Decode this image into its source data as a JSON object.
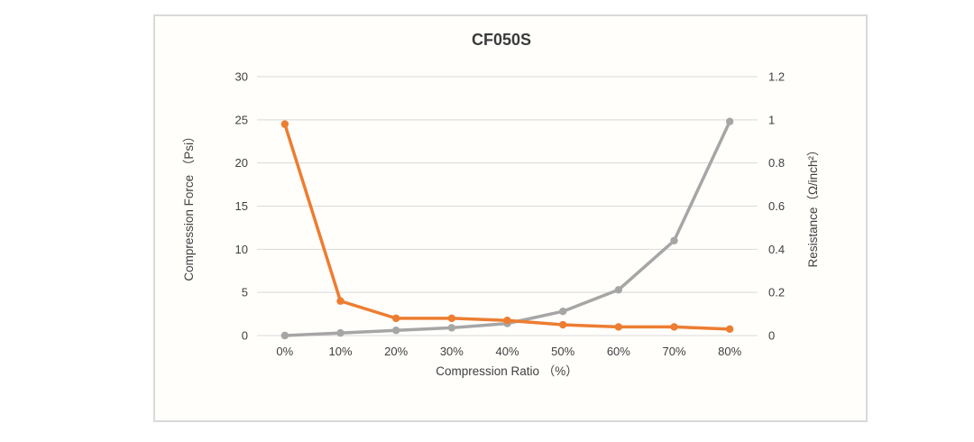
{
  "chart": {
    "border_color": "#d9d9d9",
    "background": "#fffefb",
    "gridline_color": "#d9d9d9",
    "text_color": "#404040"
  },
  "chart_data": {
    "type": "line",
    "title": "CF050S",
    "xlabel": "Compression Ratio （%）",
    "ylabel_left": "Compression Force （Psi）",
    "ylabel_right": "Resistance（Ω/inch²）",
    "categories": [
      "0%",
      "10%",
      "20%",
      "30%",
      "40%",
      "50%",
      "60%",
      "70%",
      "80%"
    ],
    "series": [
      {
        "name": "Compression Force",
        "axis": "left",
        "color": "#a6a6a6",
        "marker": "circle",
        "values": [
          0,
          0.3,
          0.6,
          0.9,
          1.4,
          2.8,
          5.3,
          11,
          24.8
        ]
      },
      {
        "name": "Resistance",
        "axis": "right",
        "color": "#ed7d31",
        "marker": "circle",
        "values": [
          0.98,
          0.16,
          0.08,
          0.08,
          0.07,
          0.05,
          0.04,
          0.04,
          0.03
        ]
      }
    ],
    "left_axis": {
      "min": 0,
      "max": 30,
      "step": 5,
      "ticks": [
        "0",
        "5",
        "10",
        "15",
        "20",
        "25",
        "30"
      ]
    },
    "right_axis": {
      "min": 0,
      "max": 1.2,
      "step": 0.2,
      "ticks": [
        "0",
        "0.2",
        "0.4",
        "0.6",
        "0.8",
        "1",
        "1.2"
      ]
    },
    "grid": true,
    "legend": "none"
  }
}
